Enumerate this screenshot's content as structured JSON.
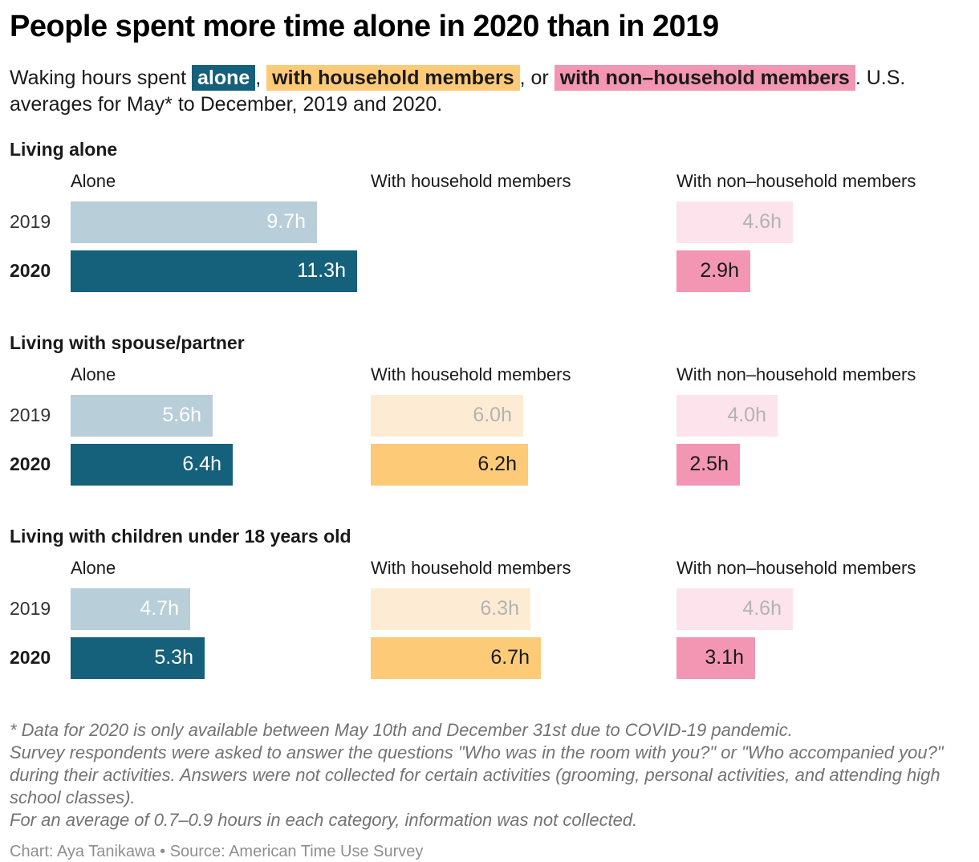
{
  "header": {
    "title": "People spent more time alone in 2020 than in 2019",
    "subtitle_parts": [
      {
        "text": "Waking hours spent ",
        "highlight": null
      },
      {
        "text": "alone",
        "highlight": "alone"
      },
      {
        "text": ", ",
        "highlight": null
      },
      {
        "text": "with household members",
        "highlight": "household"
      },
      {
        "text": ", or ",
        "highlight": null
      },
      {
        "text": "with non–household members",
        "highlight": "nonhousehold"
      },
      {
        "text": ". U.S. averages for May* to December, 2019 and 2020.",
        "highlight": null
      }
    ]
  },
  "colors": {
    "bar_fill": {
      "alone": {
        "y2019": "#b8ced8",
        "y2020": "#15607a"
      },
      "household": {
        "y2019": "#fdecd3",
        "y2020": "#fdca77"
      },
      "nonhousehold": {
        "y2019": "#fce3ec",
        "y2020": "#f296b3"
      }
    },
    "bar_label": {
      "alone": {
        "y2019": "#ffffff",
        "y2020": "#ffffff"
      },
      "household": {
        "y2019": "#b3b3b3",
        "y2020": "#1a1a1a"
      },
      "nonhousehold": {
        "y2019": "#b3b3b3",
        "y2020": "#1a1a1a"
      }
    },
    "highlight": {
      "alone": {
        "bg": "#15607a",
        "text": "#ffffff"
      },
      "household": {
        "bg": "#fdca77",
        "text": "#1a1a1a"
      },
      "nonhousehold": {
        "bg": "#f296b3",
        "text": "#1a1a1a"
      }
    }
  },
  "chart_data": {
    "type": "bar",
    "unit": "waking hours per day",
    "value_suffix": "h",
    "orientation": "horizontal",
    "pixels_per_hour": 31.6,
    "categories": [
      "Alone",
      "With household members",
      "With non–household members"
    ],
    "category_keys": [
      "alone",
      "household",
      "nonhousehold"
    ],
    "years": [
      "2019",
      "2020"
    ],
    "groups": [
      {
        "title": "Living alone",
        "values": {
          "alone": {
            "y2019": 9.7,
            "y2020": 11.3
          },
          "household": {
            "y2019": null,
            "y2020": null
          },
          "nonhousehold": {
            "y2019": 4.6,
            "y2020": 2.9
          }
        }
      },
      {
        "title": "Living with spouse/partner",
        "values": {
          "alone": {
            "y2019": 5.6,
            "y2020": 6.4
          },
          "household": {
            "y2019": 6.0,
            "y2020": 6.2
          },
          "nonhousehold": {
            "y2019": 4.0,
            "y2020": 2.5
          }
        }
      },
      {
        "title": "Living with children under 18 years old",
        "values": {
          "alone": {
            "y2019": 4.7,
            "y2020": 5.3
          },
          "household": {
            "y2019": 6.3,
            "y2020": 6.7
          },
          "nonhousehold": {
            "y2019": 4.6,
            "y2020": 3.1
          }
        }
      }
    ]
  },
  "footnotes": [
    "* Data for 2020 is only available between May 10th and December 31st due to COVID-19 pandemic.",
    "Survey respondents were asked to answer the questions \"Who was in the room with you?\" or \"Who accompanied you?\" during their activities. Answers were not collected for certain activities (grooming, personal activities, and attending high school classes).",
    "For an average of 0.7–0.9 hours in each category, information was not collected."
  ],
  "credit": "Chart: Aya Tanikawa • Source: American Time Use Survey"
}
